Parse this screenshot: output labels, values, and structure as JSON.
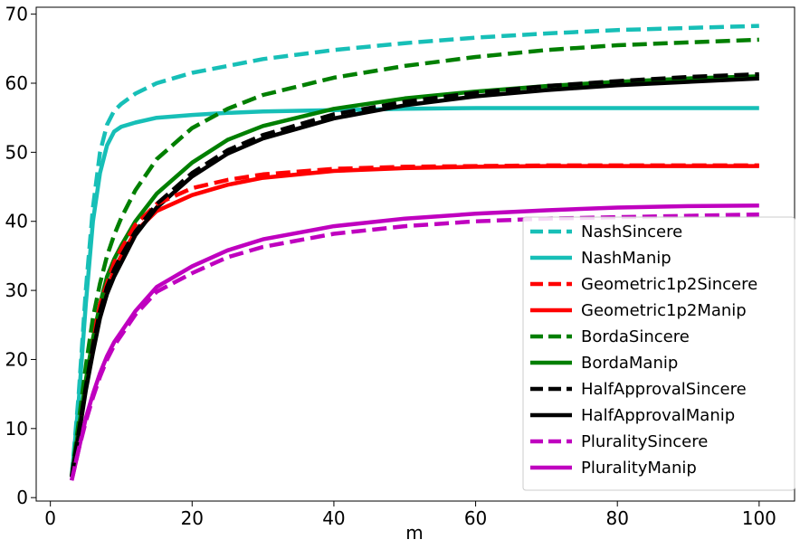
{
  "chart_data": {
    "type": "line",
    "title": "",
    "xlabel": "m",
    "ylabel": "",
    "xlim": [
      -2,
      105
    ],
    "ylim": [
      -0.5,
      71
    ],
    "xticks": [
      0,
      20,
      40,
      60,
      80,
      100
    ],
    "yticks": [
      0,
      10,
      20,
      30,
      40,
      50,
      60,
      70
    ],
    "grid": false,
    "legend_position": "lower-right",
    "series": [
      {
        "name": "NashSincere",
        "color": "#17BFB7",
        "style": "dashed",
        "x": [
          3,
          4,
          5,
          6,
          7,
          8,
          9,
          10,
          12,
          15,
          20,
          25,
          30,
          40,
          50,
          60,
          70,
          80,
          90,
          100
        ],
        "y": [
          3,
          15,
          30,
          42,
          50,
          54,
          56,
          57,
          58.5,
          60,
          61.5,
          62.5,
          63.5,
          64.8,
          65.8,
          66.6,
          67.2,
          67.7,
          68.0,
          68.3
        ]
      },
      {
        "name": "NashManip",
        "color": "#17BFB7",
        "style": "solid",
        "x": [
          3,
          4,
          5,
          6,
          7,
          8,
          9,
          10,
          12,
          15,
          20,
          25,
          30,
          40,
          50,
          60,
          70,
          80,
          90,
          100
        ],
        "y": [
          3,
          14,
          28,
          40,
          47,
          51,
          53,
          53.7,
          54.3,
          55.0,
          55.4,
          55.7,
          55.9,
          56.1,
          56.3,
          56.4,
          56.4,
          56.4,
          56.4,
          56.4
        ]
      },
      {
        "name": "Geometric1p2Sincere",
        "color": "#FF0000",
        "style": "dashed",
        "x": [
          3,
          4,
          5,
          6,
          7,
          8,
          9,
          10,
          12,
          15,
          20,
          25,
          30,
          40,
          50,
          60,
          70,
          80,
          90,
          100
        ],
        "y": [
          3,
          10,
          17,
          23,
          28,
          31,
          34,
          36,
          39.5,
          42.5,
          44.8,
          46.0,
          46.8,
          47.6,
          47.9,
          48.0,
          48.1,
          48.1,
          48.1,
          48.1
        ]
      },
      {
        "name": "Geometric1p2Manip",
        "color": "#FF0000",
        "style": "solid",
        "x": [
          3,
          4,
          5,
          6,
          7,
          8,
          9,
          10,
          12,
          15,
          20,
          25,
          30,
          40,
          50,
          60,
          70,
          80,
          90,
          100
        ],
        "y": [
          3,
          10,
          16,
          22,
          27,
          30,
          33,
          35,
          38.5,
          41.5,
          43.8,
          45.3,
          46.3,
          47.3,
          47.7,
          47.9,
          48.0,
          48.0,
          48.0,
          48.0
        ]
      },
      {
        "name": "BordaSincere",
        "color": "#007F00",
        "style": "dashed",
        "x": [
          3,
          4,
          5,
          6,
          7,
          8,
          9,
          10,
          12,
          15,
          20,
          25,
          30,
          40,
          50,
          60,
          70,
          80,
          90,
          100
        ],
        "y": [
          3,
          11,
          19,
          26,
          31,
          35,
          38,
          40.5,
          44.5,
          49,
          53.5,
          56.3,
          58.3,
          60.8,
          62.5,
          63.8,
          64.8,
          65.5,
          65.9,
          66.3
        ]
      },
      {
        "name": "BordaManip",
        "color": "#007F00",
        "style": "solid",
        "x": [
          3,
          4,
          5,
          6,
          7,
          8,
          9,
          10,
          12,
          15,
          20,
          25,
          30,
          40,
          50,
          60,
          70,
          80,
          90,
          100
        ],
        "y": [
          3,
          10,
          17,
          23,
          28,
          32,
          34.5,
          36.5,
          40,
          44,
          48.5,
          51.8,
          53.8,
          56.3,
          57.8,
          58.8,
          59.6,
          60.2,
          60.7,
          61.0
        ]
      },
      {
        "name": "HalfApprovalSincere",
        "color": "#000000",
        "style": "dashed",
        "x": [
          3,
          4,
          5,
          6,
          7,
          8,
          9,
          10,
          12,
          15,
          20,
          25,
          30,
          40,
          50,
          60,
          70,
          80,
          90,
          100
        ],
        "y": [
          3,
          9.5,
          16,
          22,
          27,
          30.5,
          33,
          35,
          38.5,
          42.5,
          47.0,
          50.3,
          52.5,
          55.5,
          57.3,
          58.6,
          59.6,
          60.3,
          60.9,
          61.3
        ]
      },
      {
        "name": "HalfApprovalManip",
        "color": "#000000",
        "style": "solid",
        "x": [
          3,
          4,
          5,
          6,
          7,
          8,
          9,
          10,
          12,
          15,
          20,
          25,
          30,
          40,
          50,
          60,
          70,
          80,
          90,
          100
        ],
        "y": [
          3,
          9,
          15.5,
          21,
          26,
          29.5,
          32,
          34,
          38,
          42,
          46.5,
          49.8,
          52.0,
          54.9,
          56.8,
          58.1,
          59.0,
          59.7,
          60.2,
          60.7
        ]
      },
      {
        "name": "PluralitySincere",
        "color": "#BF00BF",
        "style": "dashed",
        "x": [
          3,
          4,
          5,
          6,
          7,
          8,
          9,
          10,
          12,
          15,
          20,
          25,
          30,
          40,
          50,
          60,
          70,
          80,
          90,
          100
        ],
        "y": [
          2.5,
          7,
          11,
          14.5,
          17.5,
          20,
          22,
          23.5,
          26.5,
          29.8,
          32.5,
          34.8,
          36.3,
          38.2,
          39.3,
          40.0,
          40.4,
          40.6,
          40.8,
          41.0
        ]
      },
      {
        "name": "PluralityManip",
        "color": "#BF00BF",
        "style": "solid",
        "x": [
          3,
          4,
          5,
          6,
          7,
          8,
          9,
          10,
          12,
          15,
          20,
          25,
          30,
          40,
          50,
          60,
          70,
          80,
          90,
          100
        ],
        "y": [
          2.5,
          7,
          11.5,
          15,
          18,
          20.5,
          22.5,
          24,
          27,
          30.5,
          33.5,
          35.8,
          37.4,
          39.3,
          40.4,
          41.1,
          41.6,
          42.0,
          42.2,
          42.3
        ]
      }
    ]
  }
}
